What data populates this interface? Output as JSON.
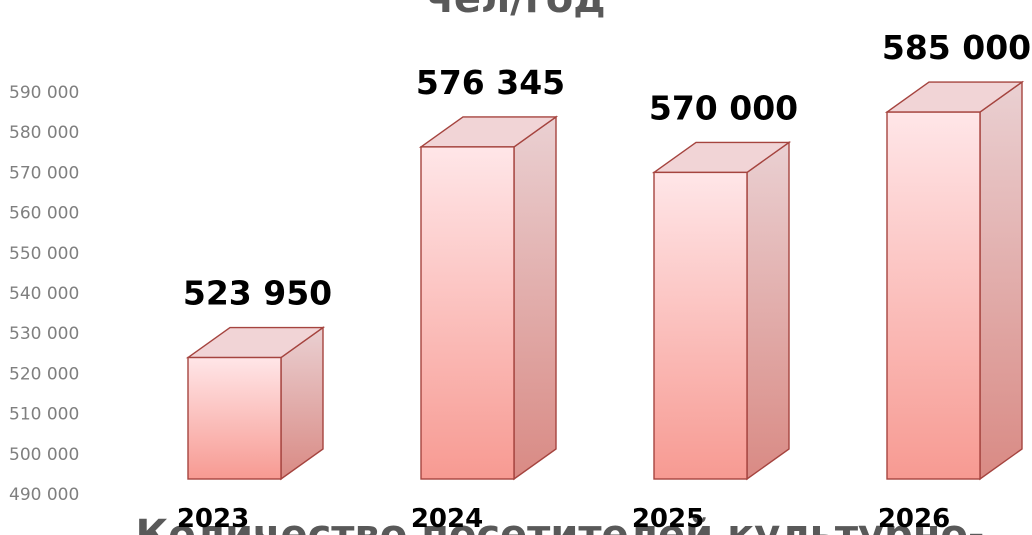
{
  "title_fragments": {
    "top": "чел/год",
    "bottom": "Количество посетителей культурно-"
  },
  "colors": {
    "bar_front_top": "#ffe6e8",
    "bar_front_bottom": "#f79a92",
    "bar_side_top": "#ead0d2",
    "bar_side_bottom": "#d98a84",
    "bar_top_face": "#f1d4d6",
    "bar_stroke": "#a5443f",
    "tick_text": "#7f7f7f",
    "title_text": "#595959"
  },
  "chart_data": {
    "type": "bar",
    "style": "3d-column",
    "categories": [
      "2023",
      "2024",
      "2025",
      "2026"
    ],
    "values": [
      523950,
      576345,
      570000,
      585000
    ],
    "data_labels": [
      "523 950",
      "576 345",
      "570 000",
      "585 000"
    ],
    "ylim": [
      490000,
      590000
    ],
    "yticks": [
      "490 000",
      "500 000",
      "510 000",
      "520 000",
      "530 000",
      "540 000",
      "550 000",
      "560 000",
      "570 000",
      "580 000",
      "590 000"
    ],
    "grid": false,
    "legend": "none"
  }
}
